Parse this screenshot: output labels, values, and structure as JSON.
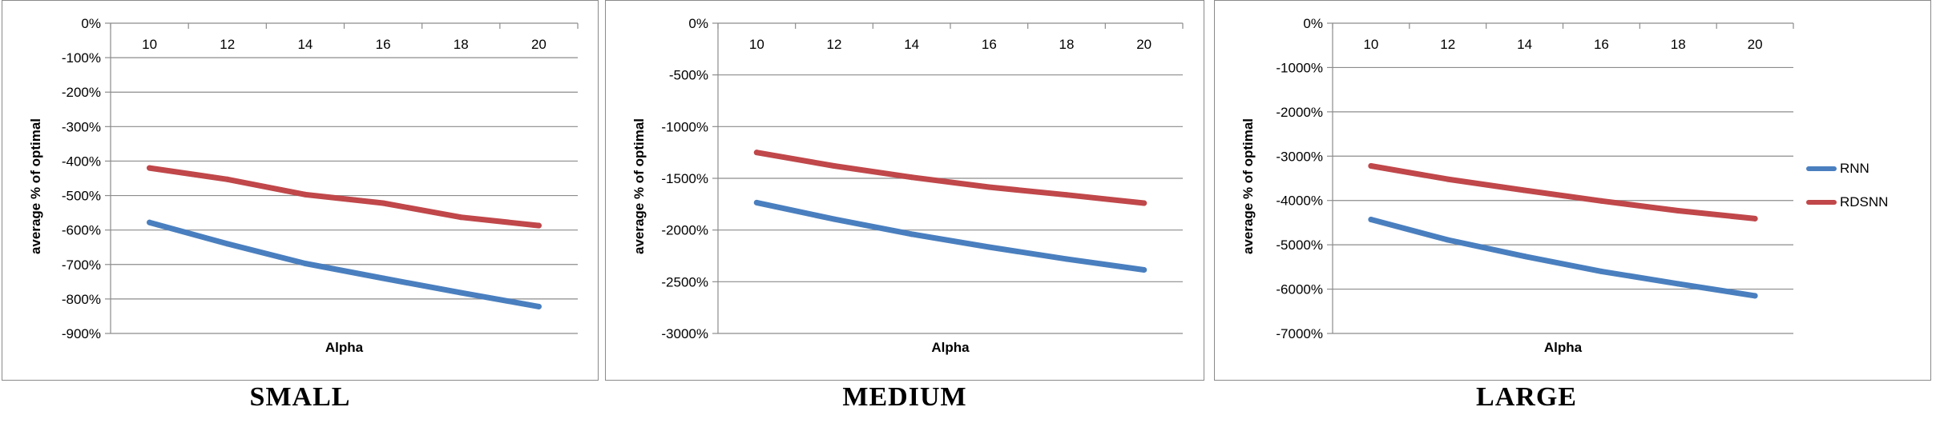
{
  "colors": {
    "RNN": "#4a7fbf",
    "RDSNN": "#c0474a",
    "grid": "#8c8c8c"
  },
  "legend": {
    "items": [
      {
        "name": "RNN"
      },
      {
        "name": "RDSNN"
      }
    ]
  },
  "chart_data": [
    {
      "type": "line",
      "caption": "SMALL",
      "xlabel": "Alpha",
      "ylabel": "average % of optimal",
      "categories": [
        "10",
        "12",
        "14",
        "16",
        "18",
        "20"
      ],
      "ylim": [
        -900,
        0
      ],
      "yticks": [
        0,
        -100,
        -200,
        -300,
        -400,
        -500,
        -600,
        -700,
        -800,
        -900
      ],
      "ytick_labels": [
        "0%",
        "-100%",
        "-200%",
        "-300%",
        "-400%",
        "-500%",
        "-600%",
        "-700%",
        "-800%",
        "-900%"
      ],
      "x_axis_position": "top",
      "grid": true,
      "series": [
        {
          "name": "RNN",
          "values": [
            -578,
            -640,
            -697,
            -740,
            -782,
            -822
          ]
        },
        {
          "name": "RDSNN",
          "values": [
            -420,
            -453,
            -497,
            -522,
            -563,
            -587
          ]
        }
      ]
    },
    {
      "type": "line",
      "caption": "MEDIUM",
      "xlabel": "Alpha",
      "ylabel": "average % of optimal",
      "categories": [
        "10",
        "12",
        "14",
        "16",
        "18",
        "20"
      ],
      "ylim": [
        -3000,
        0
      ],
      "yticks": [
        0,
        -500,
        -1000,
        -1500,
        -2000,
        -2500,
        -3000
      ],
      "ytick_labels": [
        "0%",
        "-500%",
        "-1000%",
        "-1500%",
        "-2000%",
        "-2500%",
        "-3000%"
      ],
      "x_axis_position": "top",
      "grid": true,
      "series": [
        {
          "name": "RNN",
          "values": [
            -1735,
            -1895,
            -2040,
            -2165,
            -2280,
            -2385
          ]
        },
        {
          "name": "RDSNN",
          "values": [
            -1250,
            -1380,
            -1490,
            -1585,
            -1660,
            -1740
          ]
        }
      ]
    },
    {
      "type": "line",
      "caption": "LARGE",
      "xlabel": "Alpha",
      "ylabel": "average % of optimal",
      "categories": [
        "10",
        "12",
        "14",
        "16",
        "18",
        "20"
      ],
      "ylim": [
        -7000,
        0
      ],
      "yticks": [
        0,
        -1000,
        -2000,
        -3000,
        -4000,
        -5000,
        -6000,
        -7000
      ],
      "ytick_labels": [
        "0%",
        "-1000%",
        "-2000%",
        "-3000%",
        "-4000%",
        "-5000%",
        "-6000%",
        "-7000%"
      ],
      "x_axis_position": "top",
      "grid": true,
      "legend_position": "right",
      "series": [
        {
          "name": "RNN",
          "values": [
            -4430,
            -4890,
            -5260,
            -5600,
            -5880,
            -6150
          ]
        },
        {
          "name": "RDSNN",
          "values": [
            -3220,
            -3520,
            -3770,
            -4010,
            -4230,
            -4410
          ]
        }
      ]
    }
  ]
}
